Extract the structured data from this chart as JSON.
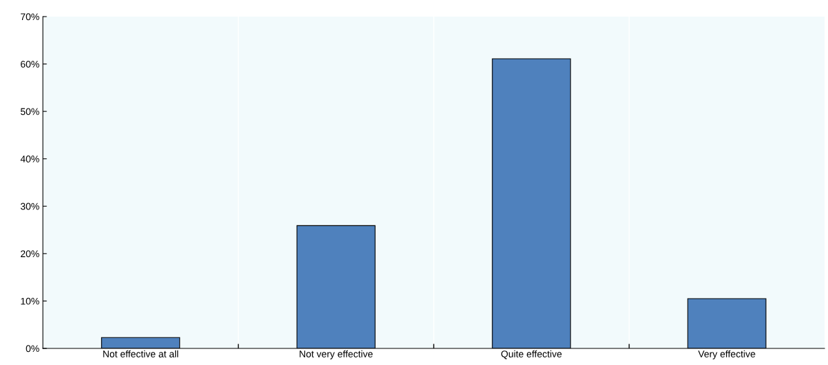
{
  "chart_data": {
    "type": "bar",
    "categories": [
      "Not effective at all",
      "Not very effective",
      "Quite effective",
      "Very effective"
    ],
    "values": [
      2.3,
      25.9,
      61.1,
      10.5
    ],
    "color": "#4f81bd",
    "ylim": [
      0,
      70
    ],
    "yticks": [
      {
        "value": 0,
        "label": "0%"
      },
      {
        "value": 10,
        "label": "10%"
      },
      {
        "value": 20,
        "label": "20%"
      },
      {
        "value": 30,
        "label": "30%"
      },
      {
        "value": 40,
        "label": "40%"
      },
      {
        "value": 50,
        "label": "50%"
      },
      {
        "value": 60,
        "label": "60%"
      },
      {
        "value": 70,
        "label": "70%"
      }
    ],
    "grid": false
  }
}
